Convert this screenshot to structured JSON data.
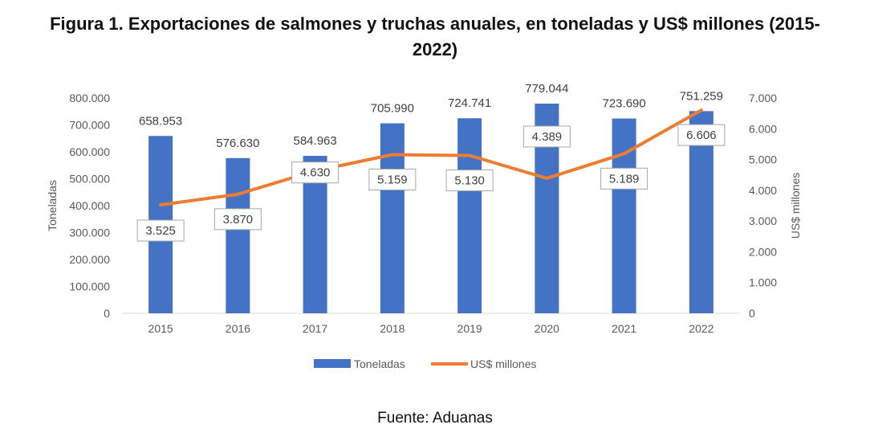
{
  "title_line1": "Figura 1. Exportaciones de salmones y truchas anuales, en toneladas y US$ millones (2015-",
  "title_line2": "2022)",
  "source": "Fuente: Aduanas",
  "colors": {
    "bar": "#4472C4",
    "line": "#ED7D31",
    "axis": "#D9D9D9",
    "text": "#595959"
  },
  "chart_data": {
    "type": "bar",
    "categories": [
      "2015",
      "2016",
      "2017",
      "2018",
      "2019",
      "2020",
      "2021",
      "2022"
    ],
    "series": [
      {
        "name": "Toneladas",
        "type": "bar",
        "axis": "left",
        "values": [
          658953,
          576630,
          584963,
          705990,
          724741,
          779044,
          723690,
          751259
        ],
        "labels": [
          "658.953",
          "576.630",
          "584.963",
          "705.990",
          "724.741",
          "779.044",
          "723.690",
          "751.259"
        ]
      },
      {
        "name": "US$ millones",
        "type": "line",
        "axis": "right",
        "values": [
          3525,
          3870,
          4630,
          5159,
          5130,
          4389,
          5189,
          6606
        ],
        "labels": [
          "3.525",
          "3.870",
          "4.630",
          "5.159",
          "5.130",
          "4.389",
          "5.189",
          "6.606"
        ]
      }
    ],
    "ylabel": "Toneladas",
    "y2label": "US$ millones",
    "ylim": [
      0,
      800000
    ],
    "y2lim": [
      0,
      7000
    ],
    "yticks": [
      "0",
      "100.000",
      "200.000",
      "300.000",
      "400.000",
      "500.000",
      "600.000",
      "700.000",
      "800.000"
    ],
    "y2ticks": [
      "0",
      "1.000",
      "2.000",
      "3.000",
      "4.000",
      "5.000",
      "6.000",
      "7.000"
    ],
    "grid": false,
    "legend": "bottom"
  }
}
